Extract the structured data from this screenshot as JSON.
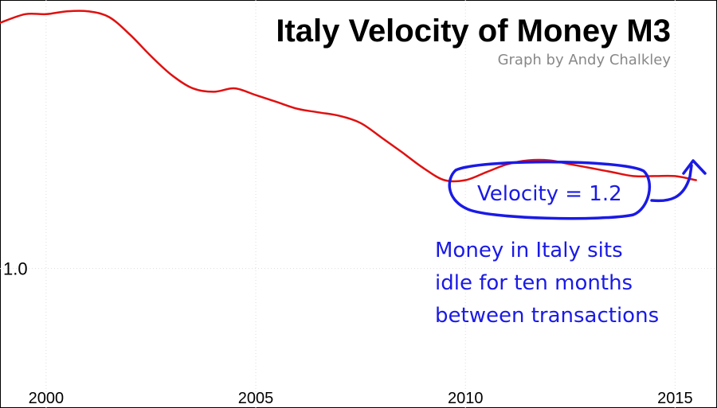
{
  "chart_data": {
    "type": "line",
    "title": "Italy Velocity of Money M3",
    "subtitle": "Graph by Andy Chalkley",
    "xlabel": "",
    "ylabel": "",
    "x_ticks": [
      2000,
      2005,
      2010,
      2015
    ],
    "y_ticks": [
      1.0
    ],
    "y_tick_labels": [
      "1.0"
    ],
    "log_scale": "y",
    "xlim": [
      1998.9,
      2016.0
    ],
    "ylim": [
      0.75,
      1.74
    ],
    "grid": true,
    "series": [
      {
        "name": "",
        "color": "#e01010",
        "x": [
          1998.9,
          1999.5,
          2000.0,
          2000.5,
          2001.0,
          2001.5,
          2002.0,
          2002.5,
          2003.0,
          2003.5,
          2004.0,
          2004.5,
          2005.0,
          2005.5,
          2006.0,
          2006.5,
          2007.0,
          2007.5,
          2008.0,
          2008.5,
          2009.0,
          2009.5,
          2010.0,
          2010.5,
          2011.0,
          2011.5,
          2012.0,
          2012.5,
          2013.0,
          2013.5,
          2014.0,
          2014.5,
          2015.0,
          2015.5
        ],
        "values": [
          1.66,
          1.69,
          1.69,
          1.7,
          1.7,
          1.68,
          1.62,
          1.55,
          1.49,
          1.45,
          1.44,
          1.45,
          1.43,
          1.41,
          1.39,
          1.38,
          1.37,
          1.35,
          1.31,
          1.27,
          1.23,
          1.2,
          1.2,
          1.22,
          1.24,
          1.25,
          1.25,
          1.24,
          1.23,
          1.22,
          1.21,
          1.21,
          1.21,
          1.2
        ]
      }
    ],
    "annotations": [
      {
        "text": "Velocity = 1.2"
      },
      {
        "text": "Money in Italy sits"
      },
      {
        "text": "idle for ten months"
      },
      {
        "text": "between transactions"
      }
    ]
  },
  "colors": {
    "line": "#e01010",
    "annotation": "#1a1ae6",
    "grid": "#dddddd",
    "frame": "#000000",
    "credit": "#888888"
  }
}
